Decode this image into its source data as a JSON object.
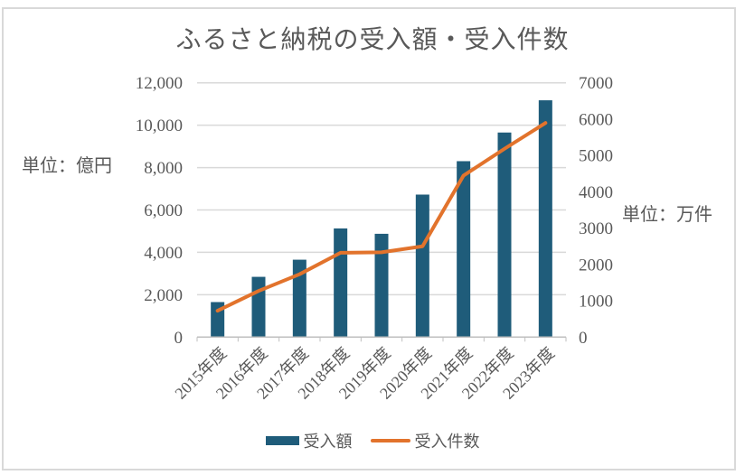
{
  "title": "ふるさと納税の受入額・受入件数",
  "left_axis": {
    "unit_label": "単位：億円",
    "ticks": [
      "0",
      "2,000",
      "4,000",
      "6,000",
      "8,000",
      "10,000",
      "12,000"
    ],
    "min": 0,
    "max": 12000,
    "step": 2000
  },
  "right_axis": {
    "unit_label": "単位：万件",
    "ticks": [
      "0",
      "1000",
      "2000",
      "3000",
      "4000",
      "5000",
      "6000",
      "7000"
    ],
    "min": 0,
    "max": 7000,
    "step": 1000
  },
  "legend": [
    {
      "label": "受入額",
      "type": "bar",
      "color": "#1F5C7A"
    },
    {
      "label": "受入件数",
      "type": "line",
      "color": "#E2732C"
    }
  ],
  "chart_data": {
    "type": "bar+line combo",
    "title": "ふるさと納税の受入額・受入件数",
    "categories": [
      "2015年度",
      "2016年度",
      "2017年度",
      "2018年度",
      "2019年度",
      "2020年度",
      "2021年度",
      "2022年度",
      "2023年度"
    ],
    "series": [
      {
        "name": "受入額",
        "type": "bar",
        "axis": "left",
        "unit": "億円",
        "color": "#1F5C7A",
        "values": [
          1653,
          2844,
          3653,
          5127,
          4875,
          6725,
          8302,
          9654,
          11175
        ]
      },
      {
        "name": "受入件数",
        "type": "line",
        "axis": "right",
        "unit": "万件",
        "color": "#E2732C",
        "values": [
          726,
          1271,
          1730,
          2322,
          2334,
          2500,
          4447,
          5184,
          5895
        ]
      }
    ],
    "left_ylim": [
      0,
      12000
    ],
    "right_ylim": [
      0,
      7000
    ],
    "grid": true,
    "legend_position": "bottom"
  },
  "colors": {
    "bar": "#1F5C7A",
    "line": "#E2732C",
    "gridline": "#D9D9D9",
    "axis_line": "#BFBFBF",
    "text": "#595959",
    "frame_border": "#D9D9D9",
    "background": "#FFFFFF"
  }
}
